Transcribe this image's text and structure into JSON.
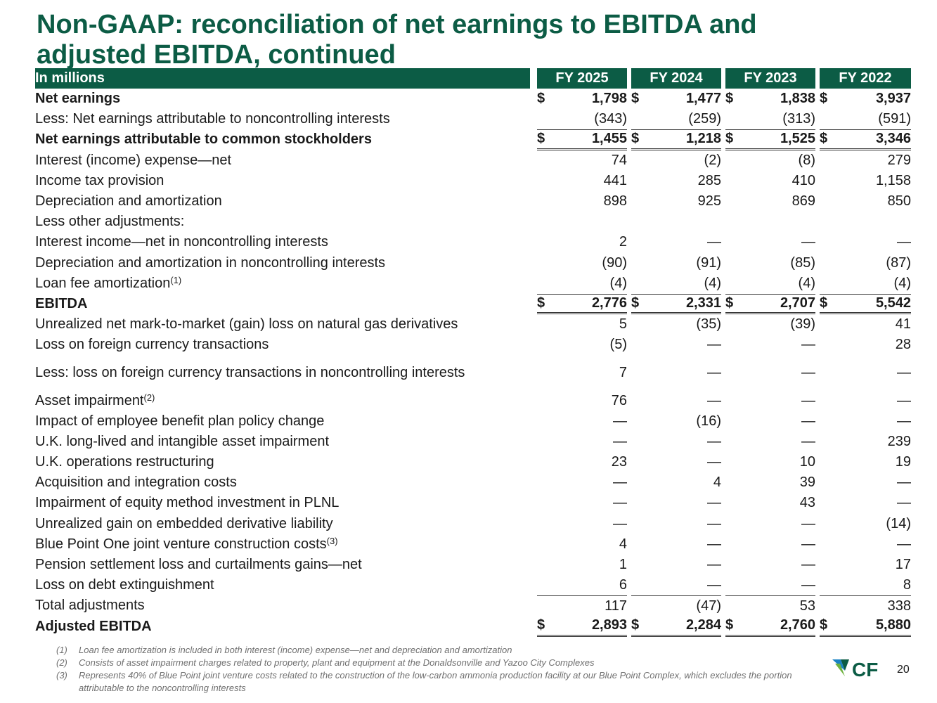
{
  "title": "Non-GAAP: reconciliation of net earnings to EBITDA and adjusted EBITDA, continued",
  "table": {
    "unit_label": "In millions",
    "years": [
      "FY 2025",
      "FY 2024",
      "FY 2023",
      "FY 2022"
    ],
    "rows": [
      {
        "label": "Net earnings",
        "style": "bold",
        "currency": "$",
        "values": [
          "1,798",
          "1,477",
          "1,838",
          "3,937"
        ]
      },
      {
        "label": "Less: Net earnings attributable to noncontrolling interests",
        "style": "indent1",
        "values": [
          "(343)",
          "(259)",
          "(313)",
          "(591)"
        ]
      },
      {
        "label": "Net earnings attributable to common stockholders",
        "style": "bold",
        "currency": "$",
        "values": [
          "1,455",
          "1,218",
          "1,525",
          "3,346"
        ]
      },
      {
        "label": "Interest (income) expense—net",
        "style": "indent1",
        "values": [
          "74",
          "(2)",
          "(8)",
          "279"
        ]
      },
      {
        "label": "Income tax provision",
        "style": "indent1",
        "values": [
          "441",
          "285",
          "410",
          "1,158"
        ]
      },
      {
        "label": "Depreciation and amortization",
        "style": "indent1",
        "values": [
          "898",
          "925",
          "869",
          "850"
        ]
      },
      {
        "label": "Less other adjustments:",
        "style": "indent1",
        "values": [
          "",
          "",
          "",
          ""
        ]
      },
      {
        "label": "Interest income—net in noncontrolling interests",
        "style": "indent2",
        "values": [
          "2",
          "—",
          "—",
          "—"
        ]
      },
      {
        "label": "Depreciation and amortization in noncontrolling interests",
        "style": "indent2",
        "values": [
          "(90)",
          "(91)",
          "(85)",
          "(87)"
        ]
      },
      {
        "label": "Loan fee amortization",
        "note": "(1)",
        "style": "indent2",
        "values": [
          "(4)",
          "(4)",
          "(4)",
          "(4)"
        ]
      },
      {
        "label": "EBITDA",
        "style": "bold",
        "currency": "$",
        "values": [
          "2,776",
          "2,331",
          "2,707",
          "5,542"
        ]
      },
      {
        "label": "Unrealized net mark-to-market (gain) loss on natural gas derivatives",
        "style": "indent1",
        "values": [
          "5",
          "(35)",
          "(39)",
          "41"
        ]
      },
      {
        "label": "Loss on foreign currency transactions",
        "style": "indent1",
        "values": [
          "(5)",
          "—",
          "—",
          "28"
        ]
      },
      {
        "label": "Less: loss on foreign currency transactions in noncontrolling interests",
        "style": "indent1",
        "values": [
          "7",
          "—",
          "—",
          "—"
        ]
      },
      {
        "label": "Asset impairment",
        "note": "(2)",
        "style": "indent1",
        "values": [
          "76",
          "—",
          "—",
          "—"
        ]
      },
      {
        "label": "Impact of employee benefit plan policy change",
        "style": "indent1",
        "values": [
          "—",
          "(16)",
          "—",
          "—"
        ]
      },
      {
        "label": "U.K. long-lived and intangible asset impairment",
        "style": "indent1",
        "values": [
          "—",
          "—",
          "—",
          "239"
        ]
      },
      {
        "label": "U.K. operations restructuring",
        "style": "indent1",
        "values": [
          "23",
          "—",
          "10",
          "19"
        ]
      },
      {
        "label": "Acquisition and integration costs",
        "style": "indent1",
        "values": [
          "—",
          "4",
          "39",
          "—"
        ]
      },
      {
        "label": "Impairment of equity method investment in PLNL",
        "style": "indent1",
        "values": [
          "—",
          "—",
          "43",
          "—"
        ]
      },
      {
        "label": "Unrealized gain on embedded derivative liability",
        "style": "indent1",
        "values": [
          "—",
          "—",
          "—",
          "(14)"
        ]
      },
      {
        "label": "Blue Point One joint venture construction costs",
        "note": "(3)",
        "style": "indent1",
        "values": [
          "4",
          "—",
          "—",
          "—"
        ]
      },
      {
        "label": "Pension settlement loss and curtailments gains—net",
        "style": "indent1",
        "values": [
          "1",
          "—",
          "—",
          "17"
        ]
      },
      {
        "label": "Loss on debt extinguishment",
        "style": "indent1",
        "values": [
          "6",
          "—",
          "—",
          "8"
        ]
      },
      {
        "label": "Total adjustments",
        "style": "indent2",
        "values": [
          "117",
          "(47)",
          "53",
          "338"
        ]
      },
      {
        "label": "Adjusted EBITDA",
        "style": "bold",
        "currency": "$",
        "values": [
          "2,893",
          "2,284",
          "2,760",
          "5,880"
        ]
      }
    ]
  },
  "footnotes": [
    {
      "num": "(1)",
      "text": "Loan fee amortization is included in both interest (income) expense—net and depreciation and amortization"
    },
    {
      "num": "(2)",
      "text": "Consists of asset impairment charges related to property, plant and equipment at the Donaldsonville and Yazoo City Complexes"
    },
    {
      "num": "(3)",
      "text": "Represents 40% of Blue Point joint venture costs related to the construction of the low-carbon ammonia production facility at our Blue Point Complex, which excludes the portion attributable to the noncontrolling interests"
    }
  ],
  "logo": {
    "text": "CF",
    "icon": "cf-industries-logo",
    "color": "#0c5c45",
    "accent": "#1a82c4"
  },
  "page_number": "20",
  "colors": {
    "brand_green": "#0c5c45",
    "header_text": "#ffffff",
    "footnote_gray": "#6f6f6f"
  }
}
